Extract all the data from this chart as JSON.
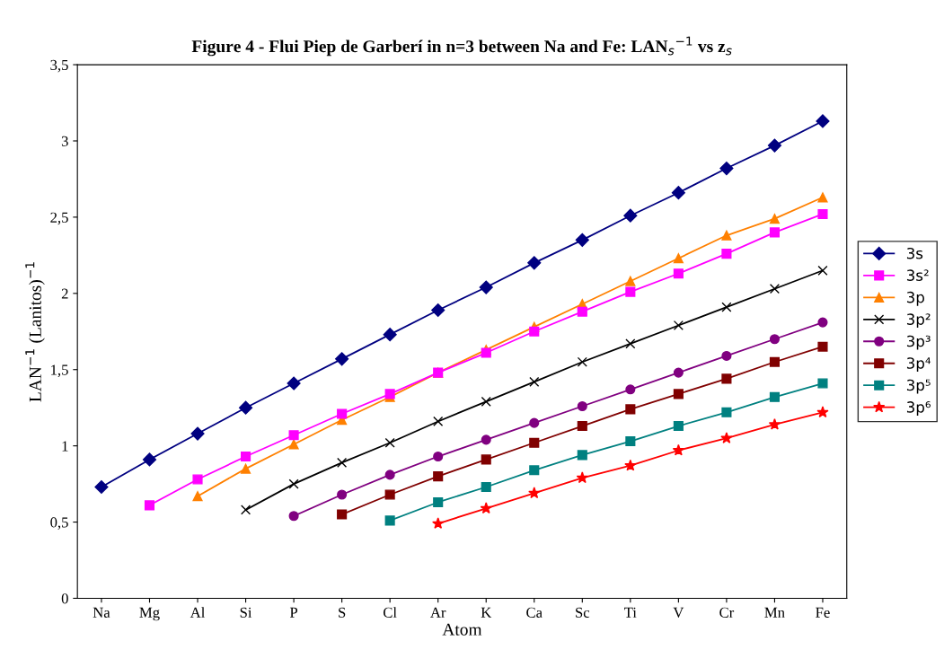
{
  "chart_data": {
    "type": "line",
    "title": "Figure 4 - Flui Piep de Garberí in n=3 between Na and Fe: LAN$_{s}$$^{−1}$ vs z$_{s}$",
    "xlabel": "Atom",
    "ylabel": "LAN$^{−1}$ (Lanitos)$^{−1}$",
    "categories": [
      "Na",
      "Mg",
      "Al",
      "Si",
      "P",
      "S",
      "Cl",
      "Ar",
      "K",
      "Ca",
      "Sc",
      "Ti",
      "V",
      "Cr",
      "Mn",
      "Fe"
    ],
    "ylim": [
      0,
      3.5
    ],
    "yticks": [
      0,
      {
        "value": 0.5,
        "label": "0,5"
      },
      1,
      {
        "value": 1.5,
        "label": "1,5"
      },
      2,
      {
        "value": 2.5,
        "label": "2,5"
      },
      3,
      {
        "value": 3.5,
        "label": "3,5"
      }
    ],
    "grid": false,
    "legend": "right",
    "line_style": "solid",
    "series": [
      {
        "name": "3s",
        "color": "#000080",
        "marker": "diamond",
        "values": [
          0.73,
          0.91,
          1.08,
          1.25,
          1.41,
          1.57,
          1.73,
          1.89,
          2.04,
          2.2,
          2.35,
          2.51,
          2.66,
          2.82,
          2.97,
          3.13
        ]
      },
      {
        "name": "3s²",
        "color": "#ff00ff",
        "marker": "square",
        "values": [
          null,
          0.61,
          0.78,
          0.93,
          1.07,
          1.21,
          1.34,
          1.48,
          1.61,
          1.75,
          1.88,
          2.01,
          2.13,
          2.26,
          2.4,
          2.52
        ]
      },
      {
        "name": "3p",
        "color": "#ff8000",
        "marker": "triangle",
        "values": [
          null,
          null,
          0.67,
          0.85,
          1.01,
          1.17,
          1.32,
          1.48,
          1.63,
          1.78,
          1.93,
          2.08,
          2.23,
          2.38,
          2.49,
          2.63
        ]
      },
      {
        "name": "3p²",
        "color": "#000000",
        "marker": "cross",
        "values": [
          null,
          null,
          null,
          0.58,
          0.75,
          0.89,
          1.02,
          1.16,
          1.29,
          1.42,
          1.55,
          1.67,
          1.79,
          1.91,
          2.03,
          2.15
        ]
      },
      {
        "name": "3p³",
        "color": "#800080",
        "marker": "circle",
        "values": [
          null,
          null,
          null,
          null,
          0.54,
          0.68,
          0.81,
          0.93,
          1.04,
          1.15,
          1.26,
          1.37,
          1.48,
          1.59,
          1.7,
          1.81
        ]
      },
      {
        "name": "3p⁴",
        "color": "#800000",
        "marker": "square",
        "values": [
          null,
          null,
          null,
          null,
          null,
          0.55,
          0.68,
          0.8,
          0.91,
          1.02,
          1.13,
          1.24,
          1.34,
          1.44,
          1.55,
          1.65
        ]
      },
      {
        "name": "3p⁵",
        "color": "#008080",
        "marker": "square",
        "values": [
          null,
          null,
          null,
          null,
          null,
          null,
          0.51,
          0.63,
          0.73,
          0.84,
          0.94,
          1.03,
          1.13,
          1.22,
          1.32,
          1.41
        ]
      },
      {
        "name": "3p⁶",
        "color": "#ff0000",
        "marker": "star",
        "values": [
          null,
          null,
          null,
          null,
          null,
          null,
          null,
          0.49,
          0.59,
          0.69,
          0.79,
          0.87,
          0.97,
          1.05,
          1.14,
          1.22
        ]
      }
    ]
  }
}
